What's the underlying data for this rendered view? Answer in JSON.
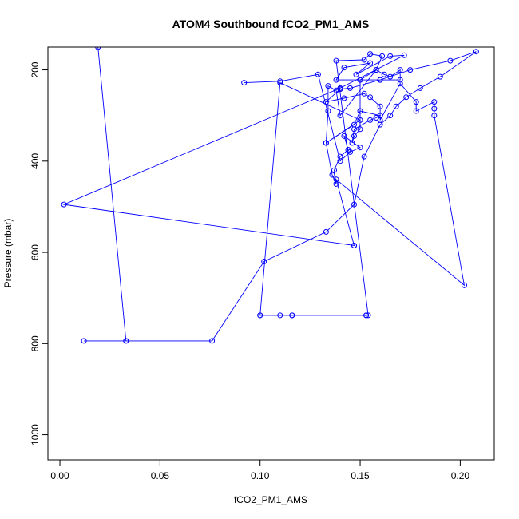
{
  "chart_data": {
    "type": "line",
    "title": "ATOM4 Southbound fCO2_PM1_AMS",
    "xlabel": "fCO2_PM1_AMS",
    "ylabel": "Pressure (mbar)",
    "xlim": [
      -0.006,
      0.217
    ],
    "ylim": [
      1055,
      150
    ],
    "y_reversed": true,
    "xticks": [
      0.0,
      0.05,
      0.1,
      0.15,
      0.2
    ],
    "xtick_labels": [
      "0.00",
      "0.05",
      "0.10",
      "0.15",
      "0.20"
    ],
    "yticks": [
      200,
      400,
      600,
      800,
      1000
    ],
    "ytick_labels": [
      "200",
      "400",
      "600",
      "800",
      "1000"
    ],
    "grid": false,
    "series": [
      {
        "name": "fCO2_PM1_AMS",
        "color": "#0000ff",
        "marker": "open-circle",
        "x": [
          0.019,
          0.033,
          0.012,
          0.033,
          0.076,
          0.102,
          0.133,
          0.147,
          0.152,
          0.16,
          0.165,
          0.168,
          0.173,
          0.18,
          0.19,
          0.208,
          0.195,
          0.175,
          0.16,
          0.15,
          0.138,
          0.142,
          0.155,
          0.148,
          0.165,
          0.172,
          0.14,
          0.002,
          0.147,
          0.147,
          0.138,
          0.202,
          0.202,
          0.187,
          0.187,
          0.187,
          0.178,
          0.178,
          0.17,
          0.16,
          0.16,
          0.16,
          0.155,
          0.152,
          0.142,
          0.133,
          0.14,
          0.145,
          0.16,
          0.17,
          0.17,
          0.165,
          0.162,
          0.158,
          0.15,
          0.15,
          0.147,
          0.146,
          0.147,
          0.155,
          0.158,
          0.16,
          0.15,
          0.147,
          0.133,
          0.15,
          0.11,
          0.1,
          0.1,
          0.11,
          0.116,
          0.116,
          0.153,
          0.153,
          0.154,
          0.138,
          0.152,
          0.155,
          0.161,
          0.158,
          0.14,
          0.138,
          0.134,
          0.134,
          0.133,
          0.136,
          0.138,
          0.137,
          0.14,
          0.144,
          0.142,
          0.15,
          0.145,
          0.14,
          0.129,
          0.11,
          0.092
        ],
        "y": [
          150,
          794,
          794,
          794,
          794,
          620,
          555,
          495,
          390,
          320,
          300,
          280,
          260,
          240,
          215,
          160,
          180,
          200,
          222,
          222,
          222,
          195,
          185,
          210,
          170,
          168,
          240,
          495,
          585,
          585,
          440,
          672,
          672,
          300,
          285,
          270,
          290,
          270,
          230,
          310,
          300,
          280,
          260,
          252,
          262,
          270,
          242,
          240,
          222,
          222,
          200,
          215,
          210,
          200,
          222,
          330,
          345,
          360,
          330,
          310,
          305,
          300,
          290,
          320,
          360,
          310,
          228,
          738,
          738,
          738,
          738,
          738,
          738,
          738,
          738,
          180,
          178,
          165,
          170,
          200,
          300,
          245,
          235,
          290,
          360,
          430,
          450,
          420,
          390,
          375,
          345,
          370,
          380,
          400,
          210,
          225,
          228
        ]
      }
    ]
  }
}
